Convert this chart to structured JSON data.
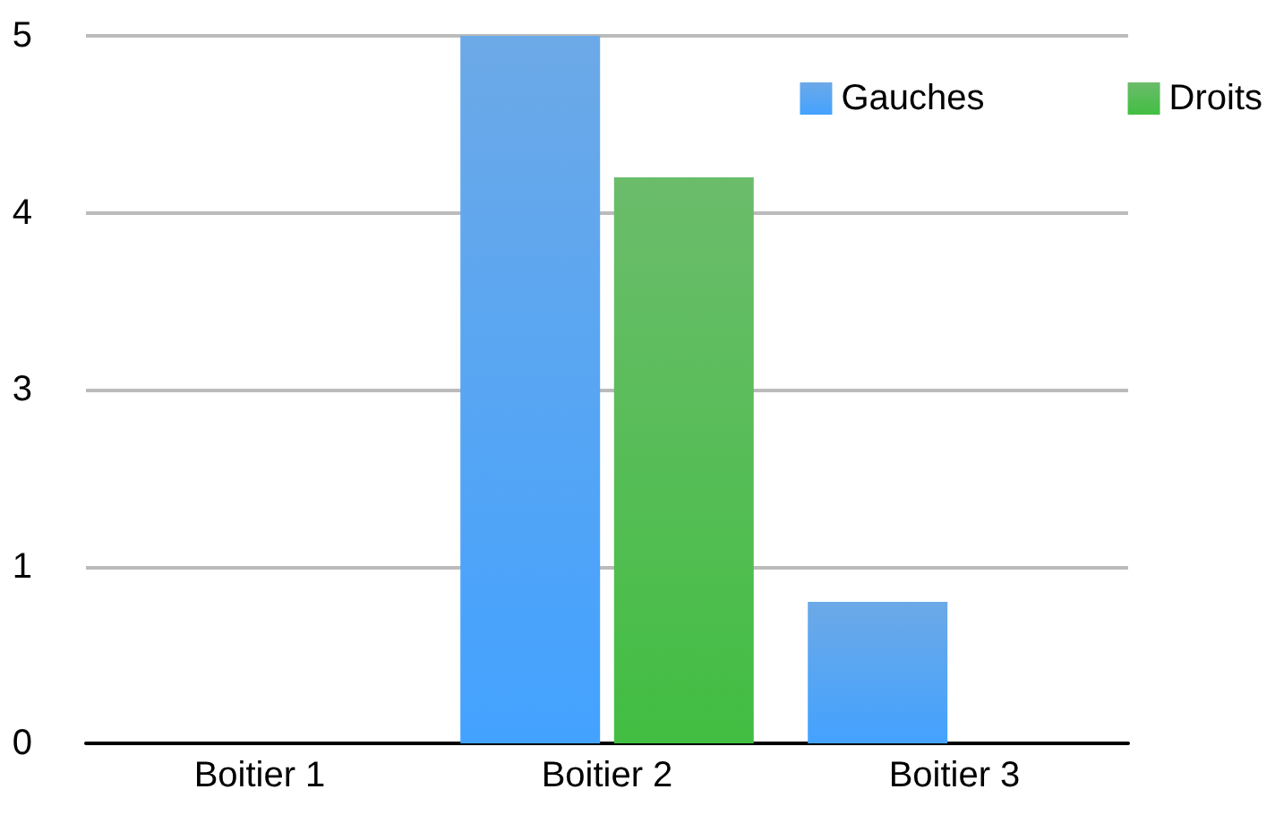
{
  "chart_data": {
    "type": "bar",
    "categories": [
      "Boitier 1",
      "Boitier 2",
      "Boitier 3"
    ],
    "series": [
      {
        "name": "Gauches",
        "color": "#3b8de0",
        "values": [
          0,
          5,
          1
        ]
      },
      {
        "name": "Droits",
        "color": "#3aa63a",
        "values": [
          0,
          4,
          0
        ]
      }
    ],
    "ylim": [
      0,
      5
    ],
    "yticks": [
      0,
      {
        "value": 1.25,
        "label": "1"
      },
      {
        "value": 2.5,
        "label": "3"
      },
      {
        "value": 3.75,
        "label": "4"
      },
      5
    ],
    "grid": "y",
    "legend": "top right"
  }
}
